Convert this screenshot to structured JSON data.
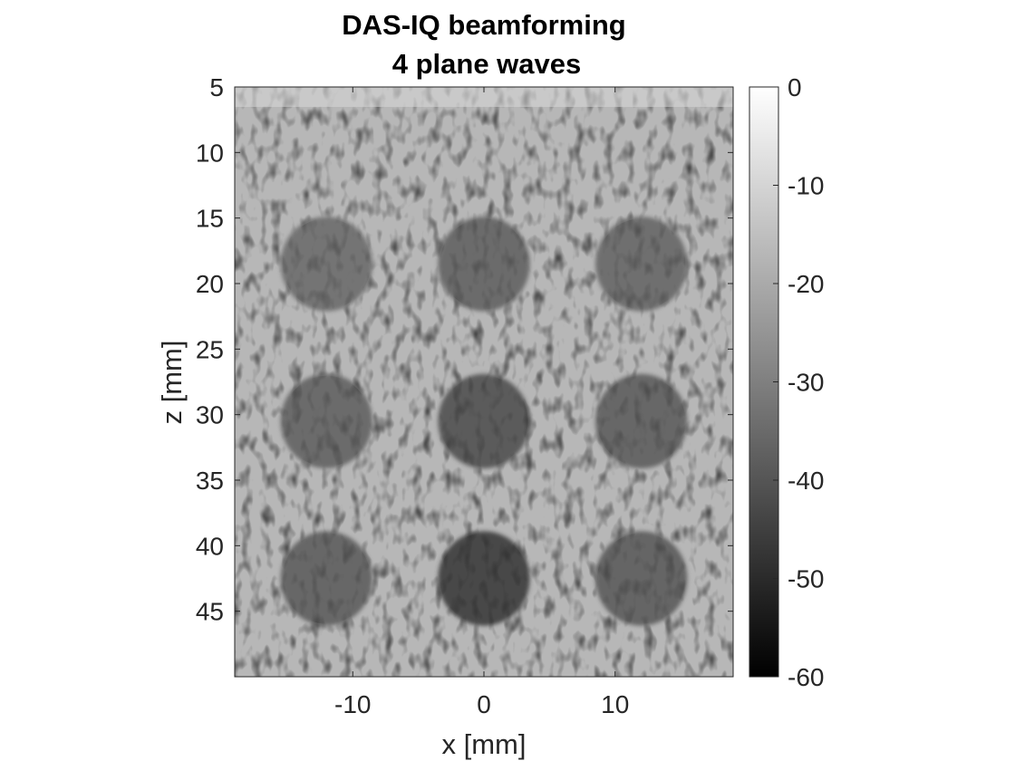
{
  "chart_data": {
    "type": "heatmap",
    "title_lines": [
      "DAS-IQ beamforming",
      "4 plane waves"
    ],
    "xlabel": "x [mm]",
    "ylabel": "z [mm]",
    "xlim": [
      -19,
      19
    ],
    "ylim": [
      5,
      50
    ],
    "y_reversed": true,
    "xticks": [
      -10,
      0,
      10
    ],
    "xtick_labels": [
      "-10",
      "0",
      "10"
    ],
    "yticks": [
      5,
      10,
      15,
      20,
      25,
      30,
      35,
      40,
      45
    ],
    "ytick_labels": [
      "5",
      "10",
      "15",
      "20",
      "25",
      "30",
      "35",
      "40",
      "45"
    ],
    "colormap": "gray",
    "colorbar": {
      "range": [
        -60,
        0
      ],
      "ticks": [
        0,
        -10,
        -20,
        -30,
        -40,
        -50,
        -60
      ],
      "tick_labels": [
        "0",
        "-10",
        "-20",
        "-30",
        "-40",
        "-50",
        "-60"
      ],
      "placement": "right"
    },
    "cysts": [
      {
        "x": -12,
        "z": 18.5,
        "radius": 3.5,
        "level_db": -34
      },
      {
        "x": 0,
        "z": 18.5,
        "radius": 3.5,
        "level_db": -36
      },
      {
        "x": 12,
        "z": 18.5,
        "radius": 3.5,
        "level_db": -35
      },
      {
        "x": -12,
        "z": 30.5,
        "radius": 3.5,
        "level_db": -36
      },
      {
        "x": 0,
        "z": 30.5,
        "radius": 3.5,
        "level_db": -40
      },
      {
        "x": 12,
        "z": 30.5,
        "radius": 3.5,
        "level_db": -37
      },
      {
        "x": -12,
        "z": 42.5,
        "radius": 3.5,
        "level_db": -37
      },
      {
        "x": 0,
        "z": 42.5,
        "radius": 3.5,
        "level_db": -45
      },
      {
        "x": 12,
        "z": 42.5,
        "radius": 3.5,
        "level_db": -38
      }
    ],
    "background_level_db": -17,
    "grid": false
  },
  "colors": {
    "axis": "#262626",
    "title": "#000000",
    "background": "#ffffff"
  }
}
